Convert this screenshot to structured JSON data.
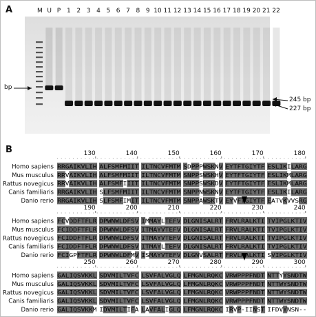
{
  "panel_a": {
    "label": "A",
    "lane_labels": [
      "M",
      "U",
      "P",
      "1",
      "2",
      "3",
      "4",
      "5",
      "6",
      "7",
      "8",
      "9",
      "10",
      "11",
      "12",
      "13",
      "14",
      "15",
      "16",
      "17",
      "18",
      "19",
      "20",
      "21",
      "22"
    ],
    "left_marker": "bp",
    "band_labels": [
      "245 bp",
      "227 bp"
    ]
  },
  "panel_b": {
    "label": "B",
    "blocks": [
      {
        "ruler": [
          "130",
          "140",
          "150",
          "160",
          "170",
          "180"
        ],
        "rows": [
          {
            "species": "Homo sapiens",
            "groups": [
              "RRGAIKVLIH",
              "ALFSMFMIIT",
              "ILTNCVFMTM",
              "SDPPPWSKNV",
              "EYTFTGIYTF",
              "ESLIKILARG"
            ]
          },
          {
            "species": "Mus musculus",
            "groups": [
              "RRVAIKVLIH",
              "ALFSMFMIIT",
              "ILTNCVFMTM",
              "SNPPSWSKHV",
              "EYTFTGIYTF",
              "ESLIKMLARG"
            ]
          },
          {
            "species": "Rattus novegicus",
            "groups": [
              "RRVAIKVLIH",
              "ALFSMFIIIT",
              "ILTNCVFMTM",
              "SNPPSWSKDV",
              "EYTFTGIYTF",
              "ESLIKMLARG"
            ]
          },
          {
            "species": "Canis familiaris",
            "groups": [
              "RRGAIKVLIH",
              "SLFSMFMIIT",
              "ILTNCVFMTM",
              "SNPPNWSKNV",
              "EYTFTGIYTF",
              "ESLIKILARG"
            ]
          },
          {
            "species": "Danio rerio",
            "groups": [
              "RRGAIKVLIH",
              "SLFSMFIMIT",
              "ILTNCVFMTM",
              "SNPPAWSKTV",
              "EYVFTGIYTF",
              "EATVKVVSRG"
            ]
          }
        ]
      },
      {
        "ruler": [
          "190",
          "200",
          "210",
          "220",
          "230",
          "240"
        ],
        "rows": [
          {
            "species": "Homo sapiens",
            "groups": [
              "FCVDDFTFLR",
              "DPWNWLDFSV",
              "IMMAYLTEFV",
              "DLGNISALRT",
              "FRVLRALKTI",
              "TVIPGLKTIV"
            ]
          },
          {
            "species": "Mus musculus",
            "groups": [
              "FCIDDFTFLR",
              "DPWNWLDFSV",
              "ITMAYVTEFV",
              "DLGNISALRT",
              "FRVLRALKTI",
              "TVIPGLKTIV"
            ]
          },
          {
            "species": "Rattus novegicus",
            "groups": [
              "FCIDDFTFLR",
              "DPWNWLDFSV",
              "ITMAYVTEFV",
              "DLGNISALRT",
              "FRVLRALKTI",
              "TVIPGLKTIV"
            ]
          },
          {
            "species": "Canis familiaris",
            "groups": [
              "FCIDDFTFLR",
              "DPWNWLDFSV",
              "ITMAYLTEFV",
              "DLGNISALRT",
              "FRVLRALKTI",
              "TVIPGLKTIV"
            ]
          },
          {
            "species": "Danio rerio",
            "groups": [
              "FCIGPFTFLR",
              "DPWNWLDFMV",
              "ISMAYVTEFV",
              "DLGNVSALRT",
              "FRVLRALKTI",
              "SVIPGLKTIV"
            ]
          }
        ]
      },
      {
        "ruler": [
          "250",
          "260",
          "270",
          "280",
          "290",
          "300"
        ],
        "rows": [
          {
            "species": "Homo sapiens",
            "groups": [
              "GALIQSVKKL",
              "SDVMILTVFC",
              "LSVFALVGLQ",
              "LFMGNLRQKC",
              "VRWPPPFNDT",
              "NTTYYSNDTW"
            ]
          },
          {
            "species": "Mus musculus",
            "groups": [
              "GALIQSVKKL",
              "SDVMILTVFC",
              "LSVFALVGLQ",
              "LFMGNLRQKC",
              "VRWPPPFNDT",
              "NTTWYSNDTW"
            ]
          },
          {
            "species": "Rattus novegicus",
            "groups": [
              "GALIQSVKKL",
              "SDVMILTVFC",
              "LSVFALVGLQ",
              "LFMGNLRQKC",
              "VRWPPPFNDT",
              "NTTWYSNDTW"
            ]
          },
          {
            "species": "Canis familiaris",
            "groups": [
              "GALIQSVKKL",
              "SDVMILTVFC",
              "LSVFALVGLQ",
              "LFMGNLRQKC",
              "VRWPPPFNDT",
              "NTTWYSNDTW"
            ]
          },
          {
            "species": "Danio rerio",
            "groups": [
              "GALIQSVKKM",
              "IDVMILTIFA",
              "LAVFALIGLQ",
              "LFMGNLRQKC",
              "IRVP-IINST",
              "IFDVYNSN--"
            ]
          }
        ]
      }
    ]
  }
}
